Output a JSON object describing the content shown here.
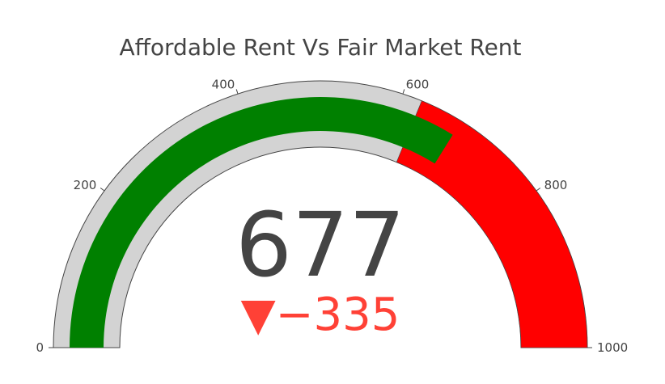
{
  "chart_data": {
    "type": "gauge",
    "title": "Affordable Rent Vs Fair Market Rent",
    "value": 677,
    "value_label": "677",
    "delta": -335,
    "delta_label": "▼−335",
    "range": [
      0,
      1000
    ],
    "ticks": [
      {
        "value": 0,
        "label": "0"
      },
      {
        "value": 200,
        "label": "200"
      },
      {
        "value": 400,
        "label": "400"
      },
      {
        "value": 600,
        "label": "600"
      },
      {
        "value": 800,
        "label": "800"
      },
      {
        "value": 1000,
        "label": "1000"
      }
    ],
    "steps": [
      {
        "range": [
          0,
          1000
        ],
        "color": "#d3d3d3"
      },
      {
        "range": [
          624,
          1000
        ],
        "color": "#ff0000"
      }
    ],
    "bar": {
      "value": 677,
      "color": "#008000"
    },
    "colors": {
      "value_text": "#444444",
      "delta_decreasing": "#ff4136",
      "title_text": "#444444",
      "tick_text": "#444444"
    }
  }
}
